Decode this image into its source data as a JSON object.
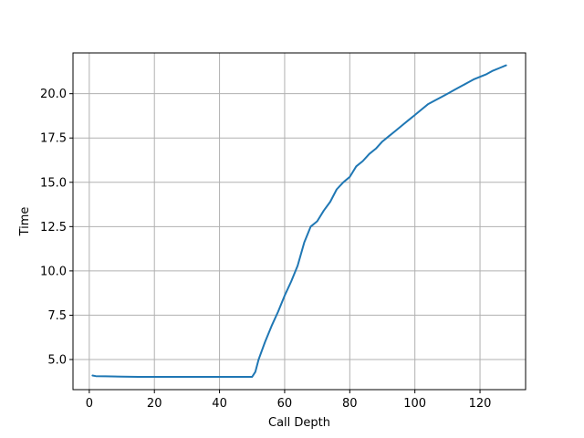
{
  "chart_data": {
    "type": "line",
    "title": "",
    "xlabel": "Call Depth",
    "ylabel": "Time",
    "xlim": [
      -5,
      134
    ],
    "ylim": [
      3.3,
      22.3
    ],
    "xticks": [
      0,
      20,
      40,
      60,
      80,
      100,
      120
    ],
    "xtick_labels": [
      "0",
      "20",
      "40",
      "60",
      "80",
      "100",
      "120"
    ],
    "yticks": [
      5.0,
      7.5,
      10.0,
      12.5,
      15.0,
      17.5,
      20.0
    ],
    "ytick_labels": [
      "5.0",
      "7.5",
      "10.0",
      "12.5",
      "15.0",
      "17.5",
      "20.0"
    ],
    "grid": true,
    "legend": "none",
    "series": [
      {
        "color": "#1f77b4",
        "x": [
          1,
          2,
          5,
          10,
          15,
          20,
          30,
          40,
          48,
          50,
          51,
          52,
          54,
          56,
          58,
          60,
          62,
          64,
          66,
          68,
          70,
          72,
          74,
          76,
          78,
          80,
          82,
          84,
          86,
          88,
          90,
          92,
          94,
          96,
          98,
          100,
          102,
          104,
          106,
          108,
          110,
          112,
          114,
          116,
          118,
          120,
          122,
          124,
          126,
          128
        ],
        "y": [
          4.1,
          4.06,
          4.05,
          4.03,
          4.02,
          4.02,
          4.02,
          4.02,
          4.02,
          4.02,
          4.3,
          5.0,
          6.0,
          6.9,
          7.7,
          8.6,
          9.4,
          10.3,
          11.6,
          12.5,
          12.8,
          13.4,
          13.9,
          14.6,
          15.0,
          15.3,
          15.9,
          16.2,
          16.6,
          16.9,
          17.3,
          17.6,
          17.9,
          18.2,
          18.5,
          18.8,
          19.1,
          19.4,
          19.6,
          19.8,
          20.0,
          20.2,
          20.4,
          20.6,
          20.8,
          20.95,
          21.1,
          21.3,
          21.45,
          21.6
        ]
      }
    ]
  }
}
